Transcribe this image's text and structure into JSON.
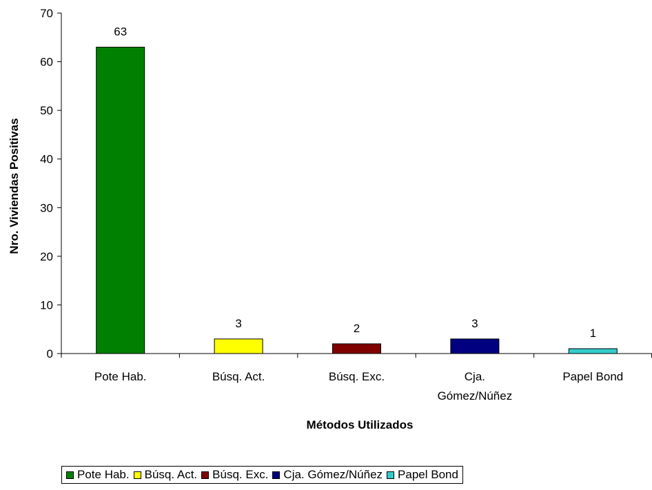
{
  "chart_data": {
    "type": "bar",
    "categories": [
      "Pote Hab.",
      "Búsq. Act.",
      "Búsq. Exc.",
      "Cja. Gómez/Núñez",
      "Papel Bond"
    ],
    "category_labels": [
      [
        "Pote Hab."
      ],
      [
        "Búsq. Act."
      ],
      [
        "Búsq. Exc."
      ],
      [
        "Cja.",
        "Gómez/Núñez"
      ],
      [
        "Papel Bond"
      ]
    ],
    "values": [
      63,
      3,
      2,
      3,
      1
    ],
    "data_labels": [
      "63",
      "3",
      "2",
      "3",
      "1"
    ],
    "colors": [
      "#008000",
      "#ffff00",
      "#800000",
      "#000080",
      "#33cccc"
    ],
    "xlabel": "Métodos Utilizados",
    "ylabel": "Nro. Viviendas Positivas",
    "ylim": [
      0,
      70
    ],
    "yticks": [
      "0",
      "10",
      "20",
      "30",
      "40",
      "50",
      "60",
      "70"
    ],
    "grid": false,
    "legend_position": "bottom",
    "legend": [
      "Pote Hab.",
      "Búsq. Act.",
      "Búsq. Exc.",
      "Cja. Gómez/Núñez",
      "Papel Bond"
    ]
  }
}
